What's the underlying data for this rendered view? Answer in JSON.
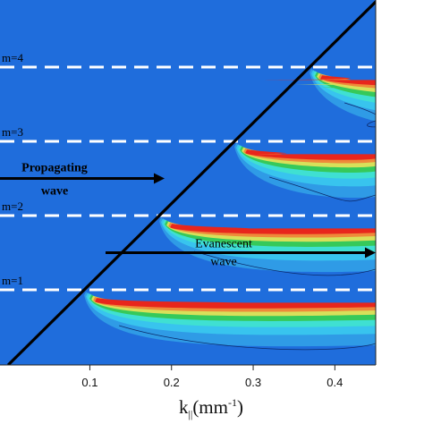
{
  "chart_data": {
    "type": "heatmap",
    "title": "",
    "xlabel": "k",
    "xlabel_sub": "||",
    "xlabel_unit_base": "(mm",
    "xlabel_unit_sup": "-1",
    "xlabel_unit_close": ")",
    "ylabel": "",
    "xlim": [
      -0.01,
      0.45
    ],
    "x_ticks": [
      {
        "value": 0.1,
        "label": "0.1"
      },
      {
        "value": 0.2,
        "label": "0.2"
      },
      {
        "value": 0.3,
        "label": "0.3"
      },
      {
        "value": 0.4,
        "label": "0.4"
      }
    ],
    "modes": [
      {
        "label": "m=1",
        "n": 1
      },
      {
        "label": "m=2",
        "n": 2
      },
      {
        "label": "m=3",
        "n": 3
      },
      {
        "label": "m=4",
        "n": 4
      }
    ],
    "light_line": {
      "slope_per_mode": 0.092,
      "intercept_k": 0.0
    },
    "annotations": [
      {
        "lines": [
          "Propagating",
          "wave"
        ],
        "style": "bold"
      },
      {
        "lines": [
          "Evanescent",
          "wave"
        ],
        "style": "plain"
      }
    ],
    "colors": {
      "background": "#1f6ddc",
      "blue_light": "#2f9be6",
      "cyan": "#38c4ee",
      "teal": "#3fe0d2",
      "green": "#36c95a",
      "yellow": "#d8e05a",
      "orange": "#ee8a3a",
      "red": "#e8261c",
      "line": "#000000",
      "dash": "#ffffff"
    }
  }
}
